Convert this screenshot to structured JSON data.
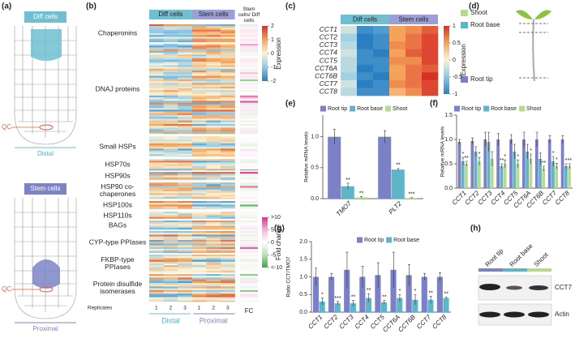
{
  "panels": {
    "a": "(a)",
    "b": "(b)",
    "c": "(c)",
    "d": "(d)",
    "e": "(e)",
    "f": "(f)",
    "g": "(g)",
    "h": "(h)"
  },
  "diagram_a": {
    "top_label": "Diff cells",
    "top_qc": "QC",
    "top_caption": "Distal",
    "bottom_label": "Stem cells",
    "bottom_qc": "QC",
    "bottom_caption": "Proximal"
  },
  "diagram_d": {
    "legend": [
      "Shoot",
      "Root base",
      "Root tip"
    ]
  },
  "blot_h": {
    "lanes": [
      "Root tip",
      "Root base",
      "Shoot"
    ],
    "bands": [
      "CCT7",
      "Actin"
    ]
  },
  "chart_data": [
    {
      "type": "heatmap_overview",
      "column_groups": [
        "Diff cells",
        "Stem cells",
        "Stem cells/ Diff cells"
      ],
      "row_groups": [
        "Chaperonins",
        "DNAJ proteins",
        "Small HSPs",
        "HSP70s",
        "HSP90s",
        "HSP90 co-chaperones",
        "HSP100s",
        "HSP110s",
        "BAGs",
        "CYP-type PPIases",
        "FKBP-type PPIases",
        "Protein disulfide isomerases"
      ],
      "replicates_label": "Replicates",
      "replicates": [
        "1",
        "2",
        "3",
        "1",
        "2",
        "3"
      ],
      "fc_label": "FC",
      "bottom_groups": [
        "Distal",
        "Proximal"
      ],
      "expression_label": "Expression",
      "expression_lim": [
        -2,
        2
      ],
      "expression_ticks": [
        2,
        1,
        0,
        -1,
        -2
      ],
      "fold_label": "Fold change",
      "fold_lim": [
        -10,
        10
      ],
      "fold_ticks": [
        {
          "value": 10,
          "label": ">10"
        },
        5,
        0,
        -5,
        {
          "value": -10,
          "label": "<-10"
        }
      ]
    },
    {
      "type": "heatmap",
      "column_groups": [
        "Diff cells",
        "Stem cells"
      ],
      "rows": [
        "CCT1",
        "CCT2",
        "CCT3",
        "CCT4",
        "CCT5",
        "CCT6A",
        "CCT6B",
        "CCT7",
        "CCT8"
      ],
      "values": [
        [
          -0.2,
          -0.9,
          -0.8,
          0.5,
          0.6,
          0.8
        ],
        [
          -0.4,
          -1,
          -0.9,
          0.5,
          0.7,
          0.9
        ],
        [
          -0.3,
          -1,
          -0.9,
          0.6,
          0.7,
          0.9
        ],
        [
          -0.2,
          -0.9,
          -1,
          0.5,
          0.8,
          0.9
        ],
        [
          -0.3,
          -0.9,
          -0.9,
          0.6,
          0.6,
          0.9
        ],
        [
          -0.3,
          -1,
          -0.9,
          0.5,
          0.7,
          0.8
        ],
        [
          -0.4,
          -0.9,
          -1,
          0.5,
          0.7,
          1
        ],
        [
          -0.2,
          -1,
          -0.9,
          0.6,
          0.7,
          0.9
        ],
        [
          -0.3,
          -0.9,
          -0.9,
          0.4,
          0.6,
          0.9
        ]
      ],
      "zlim": [
        -1,
        1
      ],
      "zticks": [
        1,
        0.5,
        0,
        -0.5,
        -1
      ],
      "zlabel": "Expression"
    },
    {
      "type": "bar",
      "ylabel": "Relative mRNA levels",
      "categories": [
        "TMO7",
        "PLT2"
      ],
      "ylim": [
        0,
        1.35
      ],
      "yticks": [
        {
          "value": 0,
          "label": "0.0"
        },
        0.5,
        {
          "value": 1,
          "label": "1.0"
        }
      ],
      "series": [
        {
          "name": "Root tip",
          "color": "#7c80c6",
          "values": [
            1.0,
            1.0
          ],
          "errors": [
            0.12,
            0.1
          ],
          "significance": [
            null,
            null
          ]
        },
        {
          "name": "Root base",
          "color": "#5db5c8",
          "values": [
            0.2,
            0.47
          ],
          "errors": [
            0.05,
            0.02
          ],
          "significance": [
            "**",
            "**"
          ]
        },
        {
          "name": "Shoot",
          "color": "#b8da8c",
          "values": [
            0.02,
            0.01
          ],
          "errors": [
            0.01,
            0.005
          ],
          "significance": [
            "**",
            "***"
          ]
        }
      ]
    },
    {
      "type": "bar",
      "ylabel": "Relative mRNA levels",
      "categories": [
        "CCT1",
        "CCT2",
        "CCT3",
        "CCT4",
        "CCT5",
        "CCT6A",
        "CCT6B",
        "CCT7",
        "CCT8"
      ],
      "ylim": [
        0,
        1.5
      ],
      "yticks": [
        {
          "value": 0,
          "label": "0.0"
        },
        0.5,
        {
          "value": 1,
          "label": "1.0"
        },
        1.5
      ],
      "series": [
        {
          "name": "Root tip",
          "color": "#7c80c6",
          "values": [
            0.95,
            0.97,
            1.0,
            1.0,
            1.0,
            1.0,
            1.0,
            1.0,
            1.0
          ],
          "errors": [
            0.05,
            0.06,
            0.15,
            0.12,
            0.1,
            0.15,
            0.15,
            0.08,
            0.08
          ],
          "significance": [
            null,
            null,
            null,
            null,
            null,
            null,
            null,
            null,
            null
          ]
        },
        {
          "name": "Root base",
          "color": "#5db5c8",
          "values": [
            0.55,
            0.75,
            0.95,
            0.45,
            0.75,
            0.75,
            0.6,
            0.55,
            0.45
          ],
          "errors": [
            0.08,
            0.1,
            0.2,
            0.05,
            0.15,
            0.15,
            0.12,
            0.1,
            0.05
          ],
          "significance": [
            "*",
            null,
            null,
            "**",
            null,
            null,
            null,
            "*",
            "*"
          ]
        },
        {
          "name": "Shoot",
          "color": "#b8da8c",
          "values": [
            0.5,
            0.55,
            0.6,
            0.5,
            0.5,
            0.6,
            0.4,
            0.45,
            0.45
          ],
          "errors": [
            0.05,
            0.08,
            0.15,
            0.08,
            0.08,
            0.1,
            0.05,
            0.06,
            0.05
          ],
          "significance": [
            "**",
            "*",
            null,
            "*",
            "*",
            "*",
            "**",
            "*",
            "**"
          ]
        }
      ]
    },
    {
      "type": "bar",
      "ylabel": "Ratio CCT/TMO7",
      "categories": [
        "CCT1",
        "CCT2",
        "CCT3",
        "CCT4",
        "CCT5",
        "CCT6A",
        "CCT6B",
        "CCT7",
        "CCT8"
      ],
      "ylim": [
        0,
        2
      ],
      "yticks": [
        {
          "value": 0,
          "label": "0.0"
        },
        0.5,
        {
          "value": 1,
          "label": "1.0"
        },
        1.5,
        {
          "value": 2,
          "label": "2.0"
        }
      ],
      "series": [
        {
          "name": "Root tip",
          "color": "#7c80c6",
          "values": [
            1.0,
            1.0,
            1.2,
            1.0,
            1.05,
            1.2,
            1.05,
            1.0,
            1.0
          ],
          "errors": [
            0.25,
            0.1,
            0.5,
            0.3,
            0.35,
            0.5,
            0.3,
            0.1,
            0.12
          ],
          "significance": [
            null,
            null,
            null,
            null,
            null,
            null,
            null,
            null,
            null
          ]
        },
        {
          "name": "Root base",
          "color": "#5db5c8",
          "values": [
            0.3,
            0.25,
            0.25,
            0.4,
            0.28,
            0.4,
            0.35,
            0.35,
            0.4
          ],
          "errors": [
            0.1,
            0.05,
            0.08,
            0.12,
            0.05,
            0.1,
            0.15,
            0.1,
            0.02
          ],
          "significance": [
            "*",
            "***",
            "**",
            "**",
            "**",
            "*",
            "*",
            "**",
            "**"
          ]
        }
      ]
    }
  ]
}
